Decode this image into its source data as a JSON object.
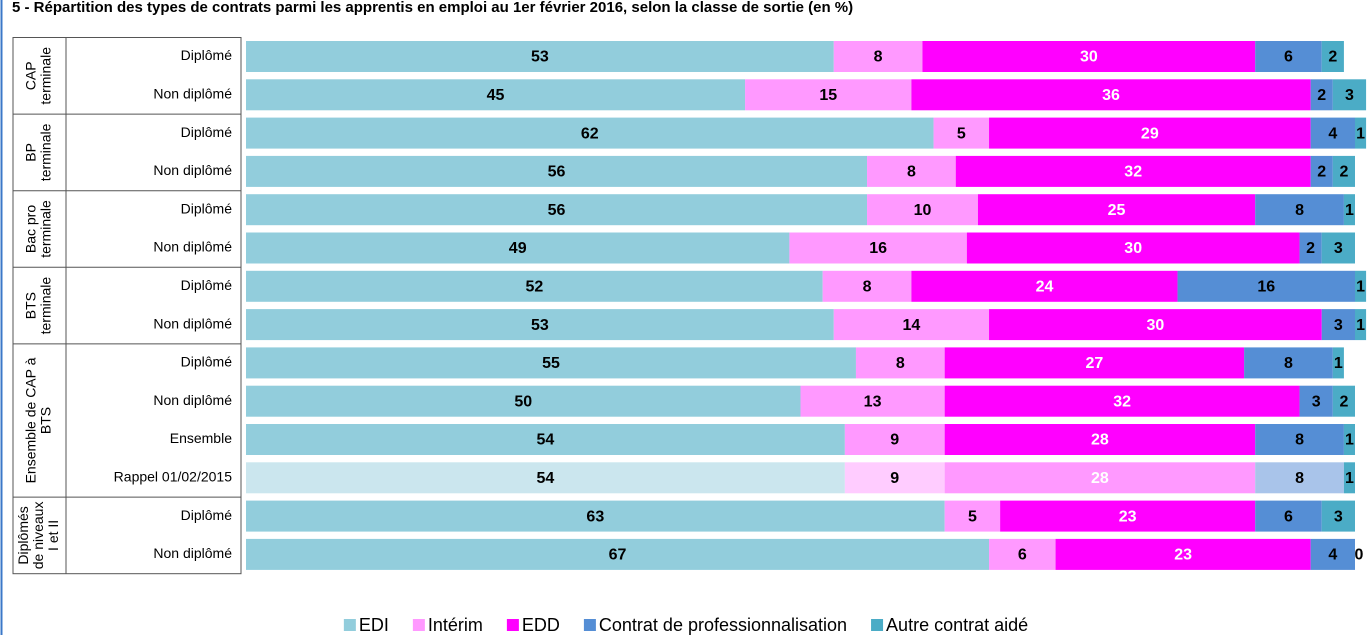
{
  "chart_data": {
    "type": "stacked-bar-horizontal",
    "title": "5 - Répartition des types de contrats parmi les apprentis en emploi au 1er février 2016, selon la classe de sortie (en %)",
    "groups": [
      {
        "name": [
          "CAP",
          "terminale"
        ],
        "categories": [
          "Diplômé",
          "Non diplômé"
        ]
      },
      {
        "name": [
          "BP",
          "terminale"
        ],
        "categories": [
          "Diplômé",
          "Non diplômé"
        ]
      },
      {
        "name": [
          "Bac pro",
          "terminale"
        ],
        "categories": [
          "Diplômé",
          "Non diplômé"
        ]
      },
      {
        "name": [
          "BTS",
          "terminale"
        ],
        "categories": [
          "Diplômé",
          "Non diplômé"
        ]
      },
      {
        "name": [
          "Ensemble de CAP à",
          "BTS"
        ],
        "categories": [
          "Diplômé",
          "Non diplômé",
          "Ensemble",
          "Rappel 01/02/2015"
        ]
      },
      {
        "name": [
          "Diplômés",
          "de niveaux",
          "I et II"
        ],
        "categories": [
          "Diplômé",
          "Non diplômé"
        ]
      }
    ],
    "series": [
      {
        "name": "EDI",
        "color": "#92cddc",
        "muted_color": "#cbe6ee",
        "label_color": "#000000",
        "values": [
          53,
          45,
          62,
          56,
          56,
          49,
          52,
          53,
          55,
          50,
          54,
          54,
          63,
          67
        ]
      },
      {
        "name": "Intérim",
        "color": "#ff99ff",
        "muted_color": "#ffccff",
        "label_color": "#000000",
        "values": [
          8,
          15,
          5,
          8,
          10,
          16,
          8,
          14,
          8,
          13,
          9,
          9,
          5,
          6
        ]
      },
      {
        "name": "EDD",
        "color": "#ff00ff",
        "muted_color": "#ff99ff",
        "label_color": "#ffffff",
        "values": [
          30,
          36,
          29,
          32,
          25,
          30,
          24,
          30,
          27,
          32,
          28,
          28,
          23,
          23
        ]
      },
      {
        "name": "Contrat de professionnalisation",
        "color": "#558ed5",
        "muted_color": "#a9c4ea",
        "label_color": "#000000",
        "values": [
          6,
          2,
          4,
          2,
          8,
          2,
          16,
          3,
          8,
          3,
          8,
          8,
          6,
          4
        ]
      },
      {
        "name": "Autre contrat aidé",
        "color": "#4bacc6",
        "muted_color": "#4bacc6",
        "label_color": "#000000",
        "values": [
          2,
          3,
          1,
          2,
          1,
          3,
          1,
          1,
          1,
          2,
          1,
          1,
          3,
          0
        ]
      }
    ],
    "muted_rows": [
      11
    ],
    "xlim": [
      0,
      100
    ],
    "legend": "bottom"
  }
}
